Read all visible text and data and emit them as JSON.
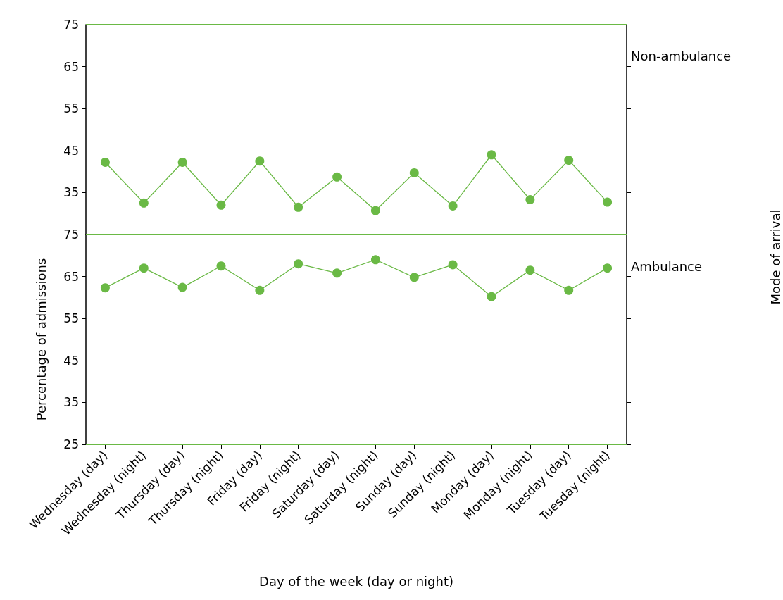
{
  "chart_data": [
    {
      "type": "line",
      "categories": [
        null,
        null,
        null,
        null,
        null,
        null,
        null,
        null,
        null,
        null,
        null,
        null,
        null,
        null
      ],
      "series": [
        {
          "name": "Non-ambulance",
          "color": "#6ab945",
          "values": [
            42.2,
            32.5,
            42.2,
            32,
            42.5,
            31.5,
            38.7,
            30.7,
            39.7,
            31.8,
            44,
            33.3,
            42.7,
            32.7
          ]
        }
      ],
      "ylim": [
        25,
        75
      ],
      "yticks": [
        35,
        45,
        55,
        65,
        75
      ],
      "tick_labels": "y",
      "marker": "circle",
      "grid": false,
      "legend": false,
      "ref_lines": [
        {
          "axis": "y",
          "value": 75,
          "color": "#6ab945"
        }
      ]
    },
    {
      "type": "line",
      "categories": [
        "Wednesday (day)",
        "Wednesday (night)",
        "Thursday (day)",
        "Thursday (night)",
        "Friday (day)",
        "Friday (night)",
        "Saturday (day)",
        "Saturday (night)",
        "Sunday (day)",
        "Sunday (night)",
        "Monday (day)",
        "Monday (night)",
        "Tuesday (day)",
        "Tuesday (night)"
      ],
      "series": [
        {
          "name": "Ambulance",
          "color": "#6ab945",
          "values": [
            62.3,
            67,
            62.4,
            67.5,
            61.7,
            68,
            65.8,
            69,
            64.8,
            67.8,
            60.2,
            66.5,
            61.7,
            67
          ]
        }
      ],
      "ylim": [
        25,
        75
      ],
      "yticks": [
        25,
        35,
        45,
        55,
        65,
        75
      ],
      "marker": "circle",
      "grid": false,
      "legend": false,
      "xlabel": "Day of the week (day or night)",
      "ylabel": "Percentage of admissions",
      "annotations": [
        "Mode of arrival"
      ],
      "ref_lines": [
        {
          "axis": "y",
          "value": 75,
          "color": "#6ab945"
        },
        {
          "axis": "y",
          "value": 25,
          "color": "#6ab945"
        }
      ]
    }
  ]
}
